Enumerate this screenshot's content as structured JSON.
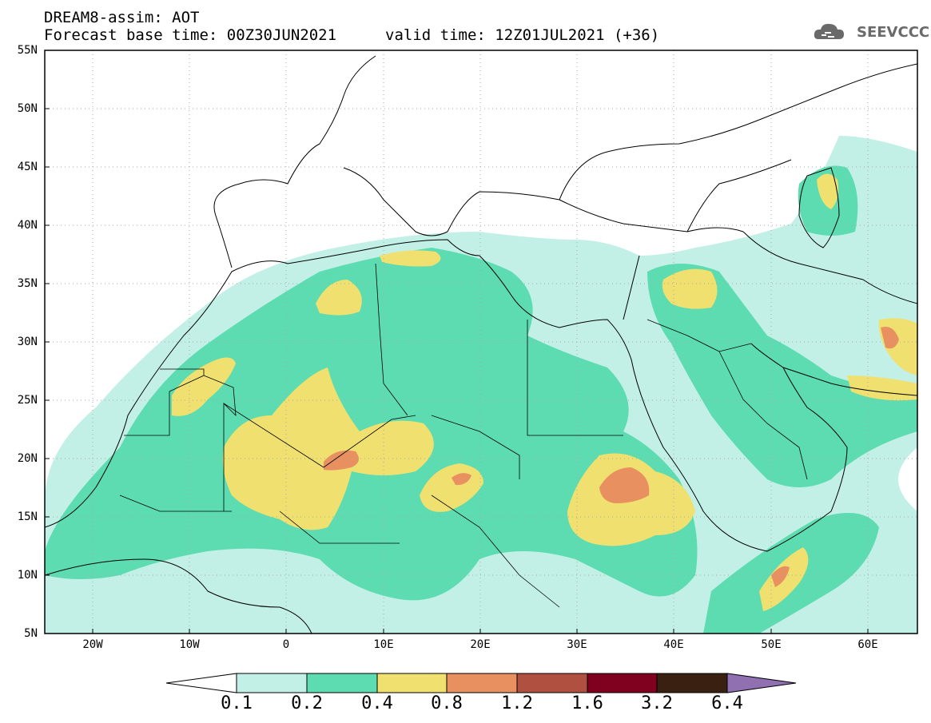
{
  "header": {
    "title": "DREAM8-assim: AOT",
    "base_time": "Forecast base time: 00Z30JUN2021",
    "valid_time": "valid time: 12Z01JUL2021 (+36)",
    "logo_text": "SEEVCCC"
  },
  "map": {
    "lat_labels": [
      "55N",
      "50N",
      "45N",
      "40N",
      "35N",
      "30N",
      "25N",
      "20N",
      "15N",
      "10N",
      "5N"
    ],
    "lon_labels": [
      "20W",
      "10W",
      "0",
      "10E",
      "20E",
      "30E",
      "40E",
      "50E",
      "60E"
    ],
    "extent": {
      "lon": [
        -25,
        65
      ],
      "lat": [
        5,
        55
      ]
    }
  },
  "colorbar": {
    "labels": [
      "0.1",
      "0.2",
      "0.4",
      "0.8",
      "1.2",
      "1.6",
      "3.2",
      "6.4"
    ],
    "colors": [
      "#ffffff",
      "#c2f0e6",
      "#5cdcb0",
      "#f0e070",
      "#e89060",
      "#b05040",
      "#800020",
      "#3a2010",
      "#9070b0"
    ]
  }
}
